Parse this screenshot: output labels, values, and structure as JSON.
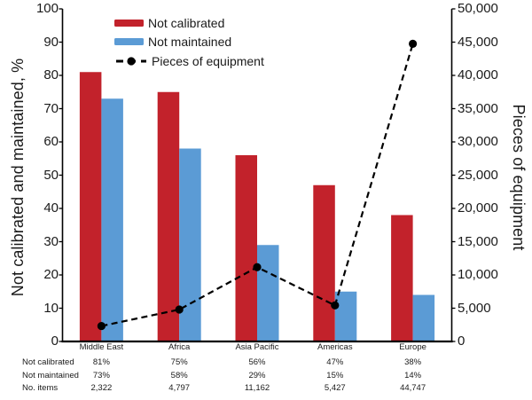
{
  "figure": {
    "background": "#ffffff",
    "text_color": "#1a1a1a"
  },
  "chart_data": {
    "type": "combo-bar-line",
    "categories": [
      "Middle East",
      "Africa",
      "Asia Pacific",
      "Americas",
      "Europe"
    ],
    "series": [
      {
        "name": "Not calibrated",
        "type": "bar",
        "axis": "left",
        "color": "#c2222b",
        "values": [
          81,
          75,
          56,
          47,
          38
        ]
      },
      {
        "name": "Not maintained",
        "type": "bar",
        "axis": "left",
        "color": "#5b9bd5",
        "values": [
          73,
          58,
          29,
          15,
          14
        ]
      },
      {
        "name": "Pieces of equipment",
        "type": "line",
        "axis": "right",
        "color": "#000000",
        "line_style": "dashed",
        "marker": "filled-circle",
        "values": [
          2322,
          4797,
          11162,
          5427,
          44747
        ]
      }
    ],
    "left_axis": {
      "label": "Not calibrated and maintained, %",
      "min": 0,
      "max": 100,
      "step": 10
    },
    "right_axis": {
      "label": "Pieces of equipment",
      "min": 0,
      "max": 50000,
      "step": 5000
    },
    "legend": {
      "position": "top-left-inside",
      "entries": [
        "Not calibrated",
        "Not maintained",
        "Pieces of equipment"
      ]
    },
    "grid": false
  },
  "data_table": {
    "rows": [
      {
        "label": "Not calibrated",
        "values": [
          "81%",
          "75%",
          "56%",
          "47%",
          "38%"
        ]
      },
      {
        "label": "Not maintained",
        "values": [
          "73%",
          "58%",
          "29%",
          "15%",
          "14%"
        ]
      },
      {
        "label": "No. items",
        "values": [
          "2,322",
          "4,797",
          "11,162",
          "5,427",
          "44,747"
        ]
      }
    ]
  }
}
